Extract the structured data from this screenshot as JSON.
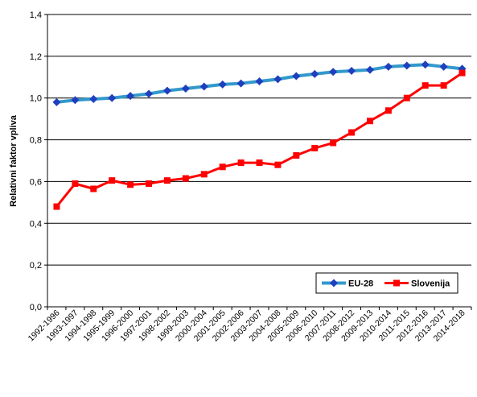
{
  "chart_data": {
    "type": "line",
    "title": "",
    "xlabel": "",
    "ylabel": "Relativni faktor vpliva",
    "ylim": [
      0,
      1.4
    ],
    "yticks": [
      "0,0",
      "0,2",
      "0,4",
      "0,6",
      "0,8",
      "1,0",
      "1,2",
      "1,4"
    ],
    "ytick_values": [
      0,
      0.2,
      0.4,
      0.6,
      0.8,
      1.0,
      1.2,
      1.4
    ],
    "grid": "horizontal",
    "legend_position": "bottom-right",
    "categories": [
      "1992-1996",
      "1993-1997",
      "1994-1998",
      "1995-1999",
      "1996-2000",
      "1997-2001",
      "1998-2002",
      "1999-2003",
      "2000-2004",
      "2001-2005",
      "2002-2006",
      "2003-2007",
      "2004-2008",
      "2005-2009",
      "2006-2010",
      "2007-2011",
      "2008-2012",
      "2009-2013",
      "2010-2014",
      "2011-2015",
      "2012-2016",
      "2013-2017",
      "2014-2018"
    ],
    "series": [
      {
        "name": "EU-28",
        "color": "#1f3fbf",
        "line_color": "#3399cc",
        "marker": "diamond",
        "values": [
          0.98,
          0.99,
          0.995,
          1.0,
          1.01,
          1.02,
          1.035,
          1.045,
          1.055,
          1.065,
          1.07,
          1.08,
          1.09,
          1.105,
          1.115,
          1.125,
          1.13,
          1.135,
          1.15,
          1.155,
          1.16,
          1.15,
          1.14
        ]
      },
      {
        "name": "Slovenija",
        "color": "#ff0000",
        "line_color": "#ff0000",
        "marker": "square",
        "values": [
          0.48,
          0.59,
          0.565,
          0.605,
          0.585,
          0.59,
          0.605,
          0.615,
          0.635,
          0.67,
          0.69,
          0.69,
          0.68,
          0.725,
          0.76,
          0.785,
          0.835,
          0.89,
          0.94,
          1.0,
          1.06,
          1.06,
          1.12
        ]
      }
    ]
  }
}
